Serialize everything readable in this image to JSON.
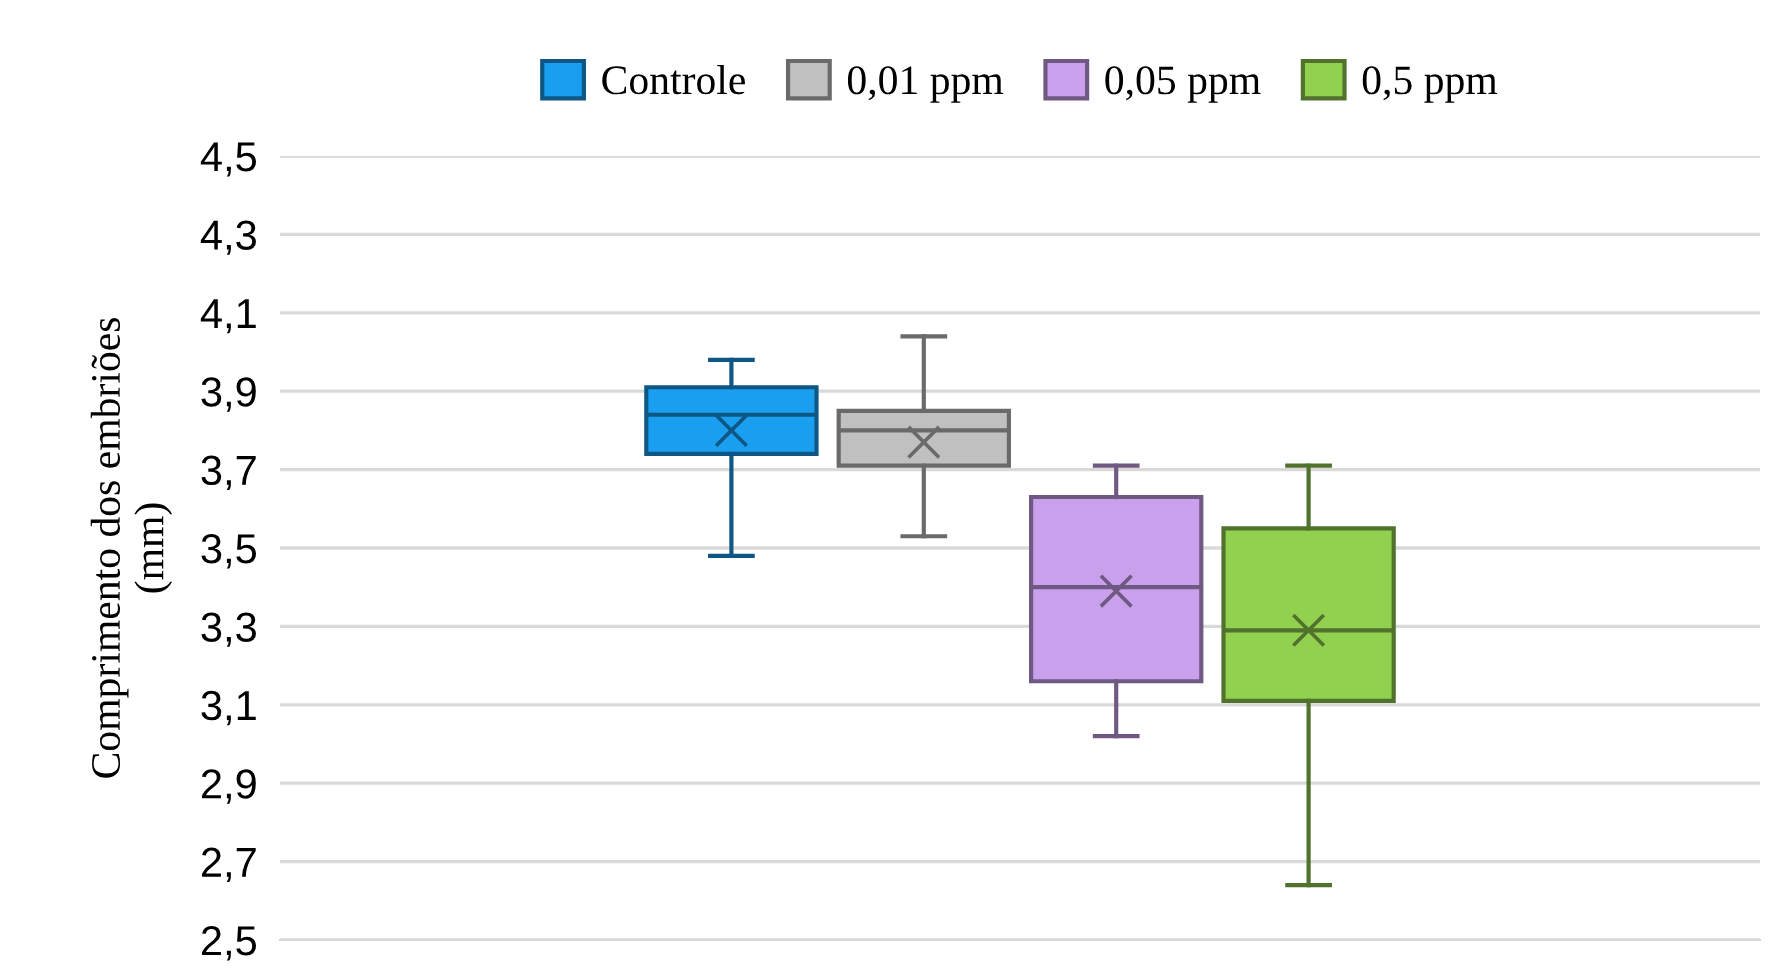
{
  "chart_data": {
    "type": "box",
    "ylabel": "Comprimento dos embriões\n(mm)",
    "categories": [
      null
    ],
    "series": [
      {
        "name": "Controle",
        "color": "#1a9ff0",
        "boxes": [
          {
            "low": 3.48,
            "q1": 3.74,
            "median": 3.84,
            "q3": 3.91,
            "high": 3.98,
            "mean": 3.8
          }
        ]
      },
      {
        "name": "0,01 ppm",
        "color": "#c0c0c0",
        "boxes": [
          {
            "low": 3.53,
            "q1": 3.71,
            "median": 3.8,
            "q3": 3.85,
            "high": 4.04,
            "mean": 3.77
          }
        ]
      },
      {
        "name": "0,05 ppm",
        "color": "#c9a0ec",
        "boxes": [
          {
            "low": 3.02,
            "q1": 3.16,
            "median": 3.4,
            "q3": 3.63,
            "high": 3.71,
            "mean": 3.39
          }
        ]
      },
      {
        "name": "0,5 ppm",
        "color": "#92d050",
        "boxes": [
          {
            "low": 2.64,
            "q1": 3.11,
            "median": 3.29,
            "q3": 3.55,
            "high": 3.71,
            "mean": 3.29
          }
        ]
      }
    ],
    "ylim": [
      2.5,
      4.5
    ],
    "yticks": [
      {
        "value": 2.5,
        "label": "2,5"
      },
      {
        "value": 2.7,
        "label": "2,7"
      },
      {
        "value": 2.9,
        "label": "2,9"
      },
      {
        "value": 3.1,
        "label": "3,1"
      },
      {
        "value": 3.3,
        "label": "3,3"
      },
      {
        "value": 3.5,
        "label": "3,5"
      },
      {
        "value": 3.7,
        "label": "3,7"
      },
      {
        "value": 3.9,
        "label": "3,9"
      },
      {
        "value": 4.1,
        "label": "4,1"
      },
      {
        "value": 4.3,
        "label": "4,3"
      },
      {
        "value": 4.5,
        "label": "4,5"
      }
    ],
    "grid": "y",
    "legend": "top"
  }
}
